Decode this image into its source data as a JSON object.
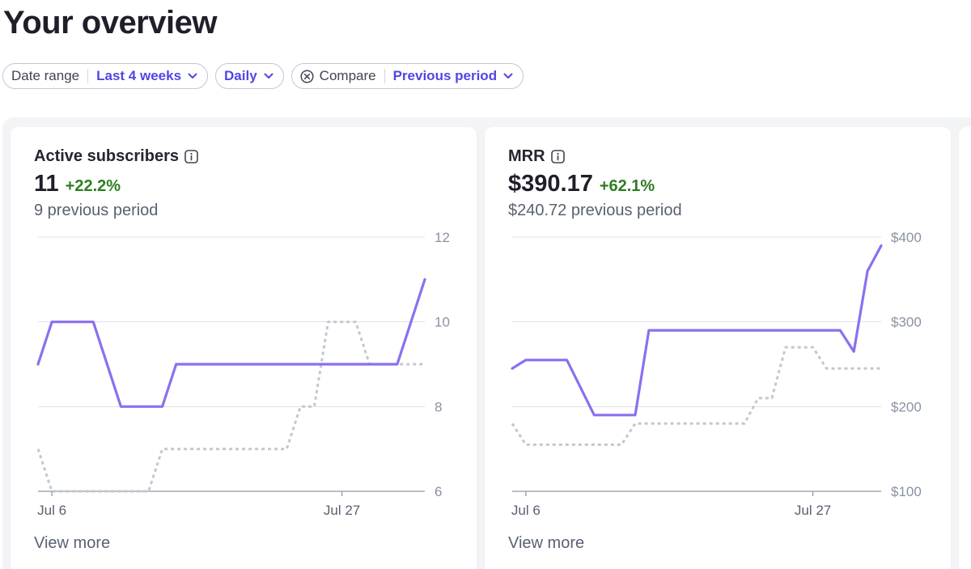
{
  "page": {
    "title": "Your overview"
  },
  "filters": {
    "date_range": {
      "label": "Date range",
      "value": "Last 4 weeks"
    },
    "interval": {
      "value": "Daily"
    },
    "compare": {
      "label": "Compare",
      "value": "Previous period"
    }
  },
  "colors": {
    "accent": "#5146e5",
    "current_line": "#8c6ff0",
    "previous_line": "#c2c8d0",
    "positive": "#2f7d22"
  },
  "cards": [
    {
      "title": "Active subscribers",
      "value": "11",
      "change": "+22.2%",
      "previous": "9 previous period",
      "view_more": "View more",
      "chart_data": {
        "type": "line",
        "y_ticks": [
          "12",
          "10",
          "8",
          "6"
        ],
        "ylim": [
          6,
          12
        ],
        "x_ticks": [
          {
            "label": "Jul 6",
            "day": 1
          },
          {
            "label": "Jul 27",
            "day": 22
          }
        ],
        "x_domain": [
          0,
          28
        ],
        "grid": true,
        "series": [
          {
            "values": [
              [
                0,
                9
              ],
              [
                1,
                10
              ],
              [
                4,
                10
              ],
              [
                6,
                8
              ],
              [
                9,
                8
              ],
              [
                10,
                9
              ],
              [
                26,
                9
              ],
              [
                28,
                11
              ]
            ]
          },
          {
            "style": "dotted",
            "values": [
              [
                0,
                7
              ],
              [
                1,
                6
              ],
              [
                8,
                6
              ],
              [
                9,
                7
              ],
              [
                18,
                7
              ],
              [
                19,
                8
              ],
              [
                20,
                8
              ],
              [
                21,
                10
              ],
              [
                23,
                10
              ],
              [
                24,
                9
              ],
              [
                28,
                9
              ]
            ]
          }
        ]
      }
    },
    {
      "title": "MRR",
      "value": "$390.17",
      "change": "+62.1%",
      "previous": "$240.72 previous period",
      "view_more": "View more",
      "chart_data": {
        "type": "line",
        "y_ticks": [
          "$400",
          "$300",
          "$200",
          "$100"
        ],
        "ylim": [
          100,
          400
        ],
        "x_ticks": [
          {
            "label": "Jul 6",
            "day": 1
          },
          {
            "label": "Jul 27",
            "day": 22
          }
        ],
        "x_domain": [
          0,
          27
        ],
        "grid": true,
        "series": [
          {
            "values": [
              [
                0,
                245
              ],
              [
                1,
                255
              ],
              [
                4,
                255
              ],
              [
                6,
                190
              ],
              [
                9,
                190
              ],
              [
                10,
                290
              ],
              [
                24,
                290
              ],
              [
                25,
                265
              ],
              [
                26,
                360
              ],
              [
                27,
                390
              ]
            ]
          },
          {
            "style": "dotted",
            "values": [
              [
                0,
                180
              ],
              [
                1,
                155
              ],
              [
                8,
                155
              ],
              [
                9,
                180
              ],
              [
                17,
                180
              ],
              [
                18,
                210
              ],
              [
                19,
                210
              ],
              [
                20,
                270
              ],
              [
                22,
                270
              ],
              [
                23,
                245
              ],
              [
                27,
                245
              ]
            ]
          }
        ]
      }
    }
  ]
}
